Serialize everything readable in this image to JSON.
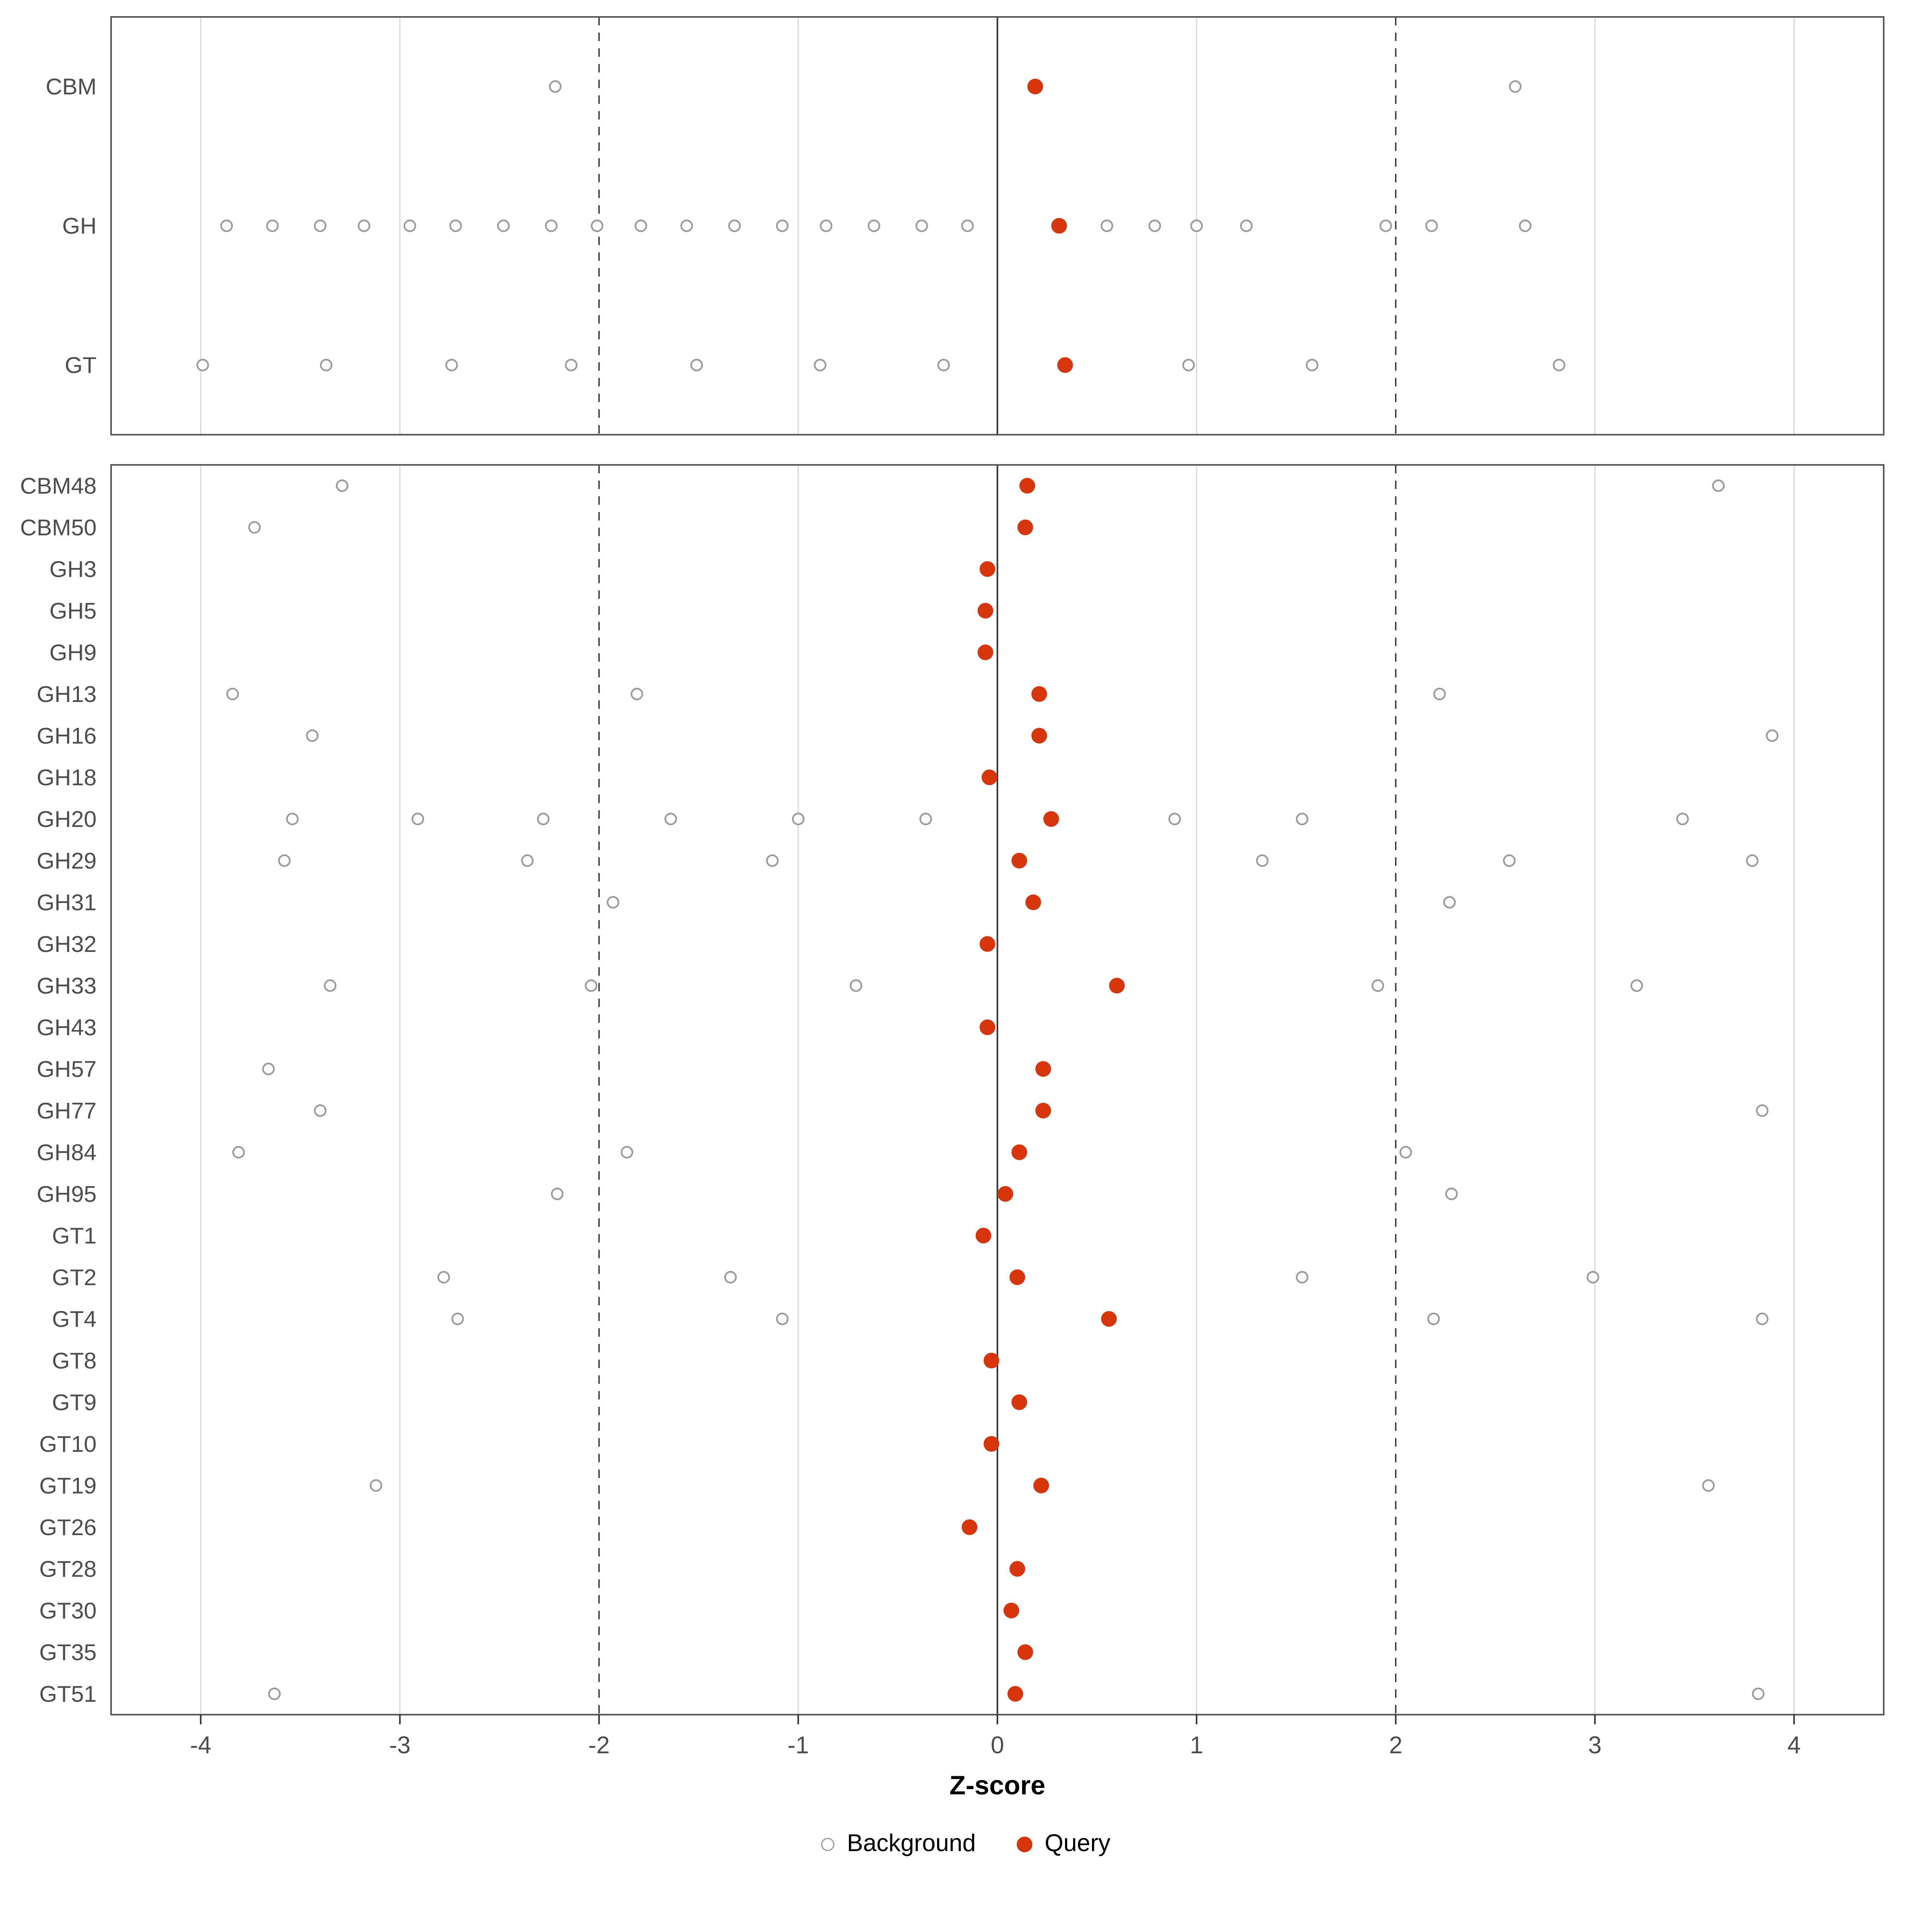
{
  "chart_data": {
    "type": "scatter",
    "title": "",
    "xlabel": "Z-score",
    "ylabel": "",
    "xlim": [
      -4.45,
      4.45
    ],
    "xticks": [
      -4,
      -3,
      -2,
      -1,
      0,
      1,
      2,
      3,
      4
    ],
    "vlines": {
      "solid": [
        0
      ],
      "dashed": [
        -2,
        2
      ]
    },
    "grid": "vertical-only",
    "legend_position": "bottom",
    "legend": {
      "background_label": "Background",
      "query_label": "Query"
    },
    "colors": {
      "query": "#d7360d",
      "background_stroke": "#9b9b9b",
      "grid": "#d9d9d9",
      "ref_line": "#3c3c3c",
      "panel_border": "#555555",
      "axis_text": "#4d4d4d",
      "tick": "#333333"
    },
    "panels": [
      {
        "name": "summary",
        "rows": [
          {
            "label": "CBM",
            "background": [
              -2.22,
              2.6
            ],
            "query": 0.19
          },
          {
            "label": "GH",
            "background": [
              -3.87,
              -3.64,
              -3.4,
              -3.18,
              -2.95,
              -2.72,
              -2.48,
              -2.24,
              -2.01,
              -1.79,
              -1.56,
              -1.32,
              -1.08,
              -0.86,
              -0.62,
              -0.38,
              -0.15,
              0.55,
              0.79,
              1.0,
              1.25,
              1.95,
              2.18,
              2.65
            ],
            "query": 0.31
          },
          {
            "label": "GT",
            "background": [
              -3.99,
              -3.37,
              -2.74,
              -2.14,
              -1.51,
              -0.89,
              -0.27,
              0.96,
              1.58,
              2.82
            ],
            "query": 0.34
          }
        ]
      },
      {
        "name": "families",
        "rows": [
          {
            "label": "CBM48",
            "background": [
              -3.29,
              3.62
            ],
            "query": 0.15
          },
          {
            "label": "CBM50",
            "background": [
              -3.73
            ],
            "query": 0.14
          },
          {
            "label": "GH3",
            "background": [],
            "query": -0.05
          },
          {
            "label": "GH5",
            "background": [],
            "query": -0.06
          },
          {
            "label": "GH9",
            "background": [],
            "query": -0.06
          },
          {
            "label": "GH13",
            "background": [
              -3.84,
              -1.81,
              2.22
            ],
            "query": 0.21
          },
          {
            "label": "GH16",
            "background": [
              -3.44,
              3.89
            ],
            "query": 0.21
          },
          {
            "label": "GH18",
            "background": [],
            "query": -0.04
          },
          {
            "label": "GH20",
            "background": [
              -3.54,
              -2.91,
              -2.28,
              -1.64,
              -1.0,
              -0.36,
              0.89,
              1.53,
              3.44
            ],
            "query": 0.27
          },
          {
            "label": "GH29",
            "background": [
              -3.58,
              -2.36,
              -1.13,
              1.33,
              2.57,
              3.79
            ],
            "query": 0.11
          },
          {
            "label": "GH31",
            "background": [
              -1.93,
              2.27
            ],
            "query": 0.18
          },
          {
            "label": "GH32",
            "background": [],
            "query": -0.05
          },
          {
            "label": "GH33",
            "background": [
              -3.35,
              -2.04,
              -0.71,
              1.91,
              3.21
            ],
            "query": 0.6
          },
          {
            "label": "GH43",
            "background": [],
            "query": -0.05
          },
          {
            "label": "GH57",
            "background": [
              -3.66
            ],
            "query": 0.23
          },
          {
            "label": "GH77",
            "background": [
              -3.4,
              3.84
            ],
            "query": 0.23
          },
          {
            "label": "GH84",
            "background": [
              -3.81,
              -1.86,
              2.05
            ],
            "query": 0.11
          },
          {
            "label": "GH95",
            "background": [
              -2.21,
              2.28
            ],
            "query": 0.04
          },
          {
            "label": "GT1",
            "background": [],
            "query": -0.07
          },
          {
            "label": "GT2",
            "background": [
              -2.78,
              -1.34,
              1.53,
              2.99
            ],
            "query": 0.1
          },
          {
            "label": "GT4",
            "background": [
              -2.71,
              -1.08,
              2.19,
              3.84
            ],
            "query": 0.56
          },
          {
            "label": "GT8",
            "background": [],
            "query": -0.03
          },
          {
            "label": "GT9",
            "background": [],
            "query": 0.11
          },
          {
            "label": "GT10",
            "background": [],
            "query": -0.03
          },
          {
            "label": "GT19",
            "background": [
              -3.12,
              3.57
            ],
            "query": 0.22
          },
          {
            "label": "GT26",
            "background": [],
            "query": -0.14
          },
          {
            "label": "GT28",
            "background": [],
            "query": 0.1
          },
          {
            "label": "GT30",
            "background": [],
            "query": 0.07
          },
          {
            "label": "GT35",
            "background": [],
            "query": 0.14
          },
          {
            "label": "GT51",
            "background": [
              -3.63,
              3.82
            ],
            "query": 0.09
          }
        ]
      }
    ]
  }
}
